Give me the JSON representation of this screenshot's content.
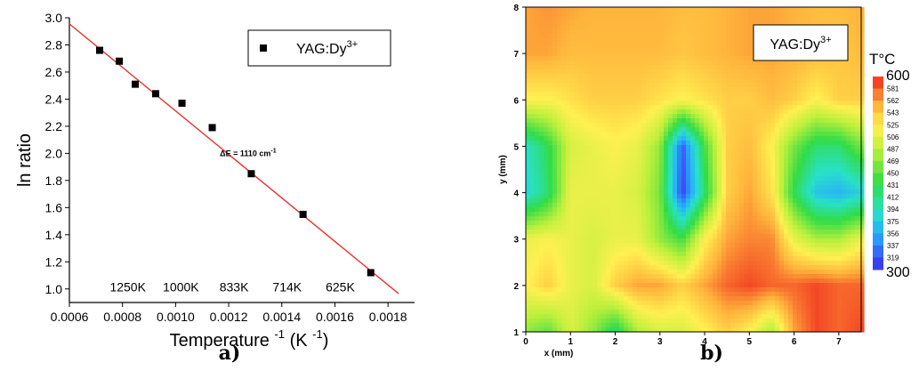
{
  "chart_data": [
    {
      "type": "scatter",
      "panel_label": "a)",
      "xlabel_main": "Temperature",
      "xlabel_sup1": "-1",
      "xlabel_unit": "(K",
      "xlabel_sup2": "-1",
      "xlabel_close": ")",
      "ylabel": "ln ratio",
      "xlim": [
        0.0006,
        0.0019
      ],
      "ylim": [
        0.9,
        3.0
      ],
      "xticks": [
        "0.0006",
        "0.0008",
        "0.0010",
        "0.0012",
        "0.0014",
        "0.0016",
        "0.0018"
      ],
      "xtick_values": [
        0.0006,
        0.0008,
        0.001,
        0.0012,
        0.0014,
        0.0016,
        0.0018
      ],
      "yticks": [
        "1.0",
        "1.2",
        "1.4",
        "1.6",
        "1.8",
        "2.0",
        "2.2",
        "2.4",
        "2.6",
        "2.8",
        "3.0"
      ],
      "ytick_values": [
        1.0,
        1.2,
        1.4,
        1.6,
        1.8,
        2.0,
        2.2,
        2.4,
        2.6,
        2.8,
        3.0
      ],
      "legend": {
        "marker_label": "YAG:Dy",
        "sup": "3+",
        "placement": "top-right"
      },
      "series": [
        {
          "points": [
            {
              "x": 0.000714,
              "y": 2.76
            },
            {
              "x": 0.000788,
              "y": 2.68
            },
            {
              "x": 0.000848,
              "y": 2.51
            },
            {
              "x": 0.000925,
              "y": 2.44
            },
            {
              "x": 0.001024,
              "y": 2.37
            },
            {
              "x": 0.001138,
              "y": 2.19
            },
            {
              "x": 0.001285,
              "y": 1.85
            },
            {
              "x": 0.00148,
              "y": 1.55
            },
            {
              "x": 0.001735,
              "y": 1.12
            }
          ],
          "marker_color": "#000000"
        }
      ],
      "fit_line": {
        "x": [
          0.0006,
          0.00184
        ],
        "y": [
          2.955,
          0.965
        ],
        "color": "#e8322e"
      },
      "annotation": {
        "text": "ΔE = 1110 cm",
        "sup": "-1",
        "x": 0.00114,
        "y": 1.98
      },
      "temperature_labels": [
        {
          "text": "1250K",
          "x": 0.0008
        },
        {
          "text": "1000K",
          "x": 0.001
        },
        {
          "text": "833K",
          "x": 0.0012
        },
        {
          "text": "714K",
          "x": 0.0014
        },
        {
          "text": "625K",
          "x": 0.0016
        }
      ],
      "temperature_labels_y": 1.02
    },
    {
      "type": "heatmap",
      "panel_label": "b)",
      "xlabel": "x (mm)",
      "ylabel": "y (mm)",
      "xlim": [
        0,
        7.5
      ],
      "ylim": [
        1,
        8
      ],
      "xticks": [
        "0",
        "1",
        "2",
        "3",
        "4",
        "5",
        "6",
        "7"
      ],
      "yticks": [
        "1",
        "2",
        "3",
        "4",
        "5",
        "6",
        "7",
        "8"
      ],
      "legend_label": "YAG:Dy",
      "legend_sup": "3+",
      "colorbar": {
        "title": "T°C",
        "min": 300,
        "max": 600,
        "min_label": "300",
        "max_label": "600",
        "levels": [
          "581",
          "562",
          "543",
          "525",
          "506",
          "487",
          "469",
          "450",
          "431",
          "412",
          "394",
          "375",
          "356",
          "337",
          "319"
        ]
      },
      "grid_x": [
        0,
        0.5,
        1.0,
        1.5,
        2.0,
        2.5,
        3.0,
        3.5,
        4.0,
        4.5,
        5.0,
        5.5,
        6.0,
        6.5,
        7.0,
        7.5
      ],
      "grid_y": [
        1,
        2,
        3,
        4,
        5,
        6,
        7,
        8
      ],
      "values": [
        [
          470,
          450,
          500,
          470,
          420,
          480,
          500,
          500,
          520,
          540,
          520,
          480,
          560,
          590,
          580,
          590
        ],
        [
          520,
          540,
          510,
          500,
          540,
          560,
          560,
          540,
          560,
          580,
          590,
          580,
          580,
          590,
          580,
          580
        ],
        [
          510,
          520,
          510,
          500,
          510,
          510,
          470,
          440,
          520,
          560,
          570,
          570,
          510,
          480,
          480,
          510
        ],
        [
          380,
          420,
          510,
          510,
          510,
          500,
          460,
          310,
          420,
          540,
          560,
          530,
          430,
          370,
          360,
          380
        ],
        [
          390,
          430,
          500,
          510,
          520,
          510,
          470,
          320,
          440,
          540,
          550,
          520,
          460,
          420,
          420,
          460
        ],
        [
          520,
          520,
          530,
          540,
          540,
          540,
          530,
          520,
          530,
          540,
          540,
          550,
          540,
          520,
          540,
          540
        ],
        [
          560,
          560,
          550,
          550,
          550,
          550,
          550,
          545,
          550,
          555,
          560,
          560,
          555,
          550,
          545,
          550
        ],
        [
          560,
          565,
          560,
          555,
          555,
          555,
          555,
          550,
          550,
          555,
          560,
          560,
          555,
          550,
          550,
          555
        ]
      ]
    }
  ]
}
